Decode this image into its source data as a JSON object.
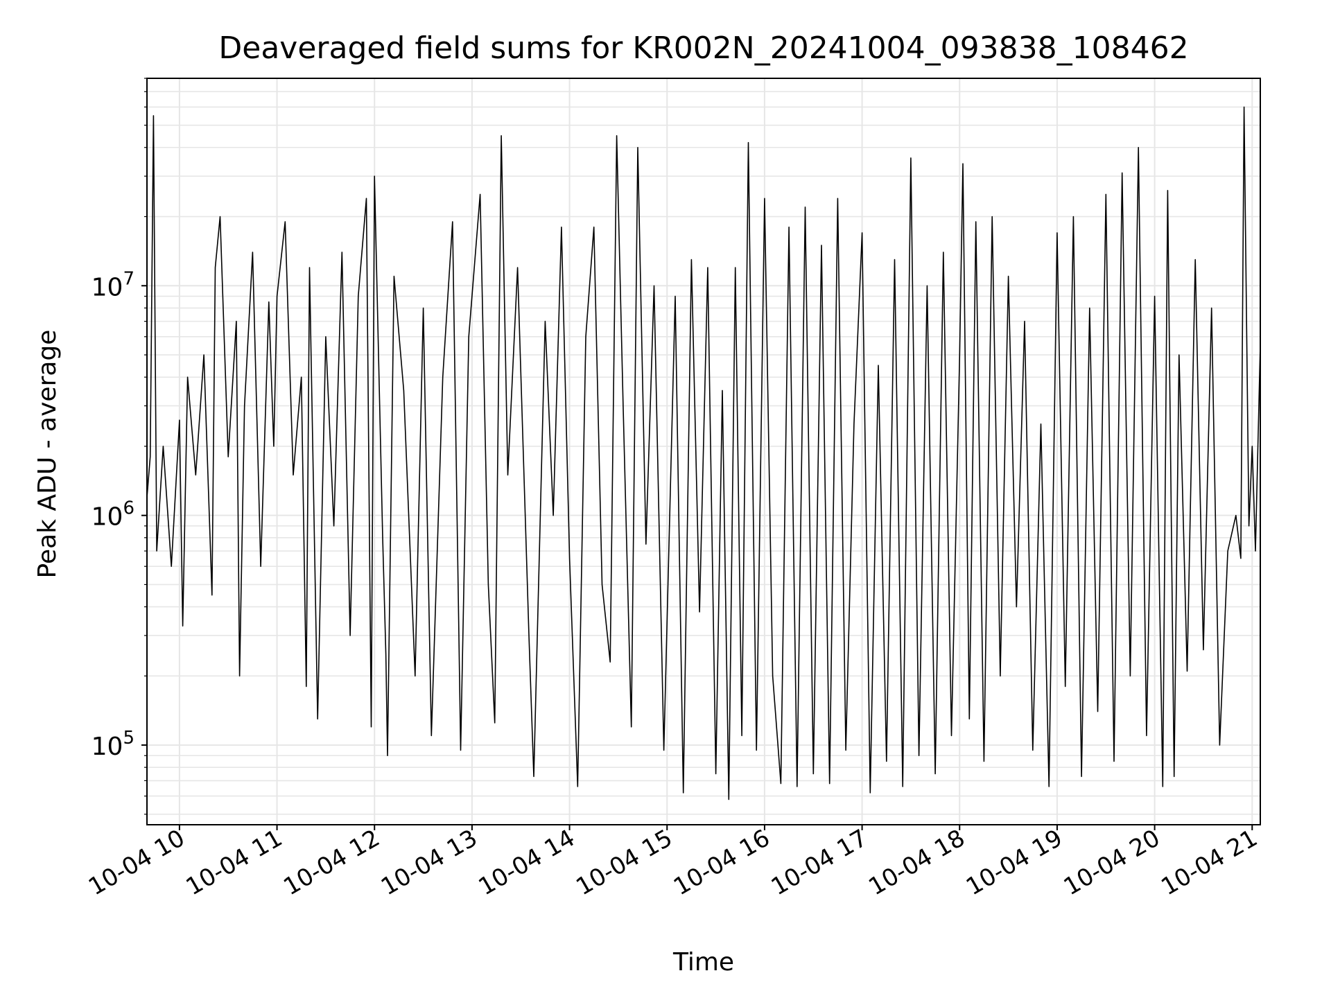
{
  "chart_data": {
    "type": "line",
    "title": "Deaveraged field sums for KR002N_20241004_093838_108462",
    "xlabel": "Time",
    "ylabel": "Peak ADU - average",
    "x_scale": "time",
    "y_scale": "log",
    "xlim": [
      "2024-10-04 09:40",
      "2024-10-04 21:05"
    ],
    "ylim": [
      45000,
      80000000
    ],
    "grid": true,
    "legend": "none",
    "x_tick_labels": [
      "10-04 10",
      "10-04 11",
      "10-04 12",
      "10-04 13",
      "10-04 14",
      "10-04 15",
      "10-04 16",
      "10-04 17",
      "10-04 18",
      "10-04 19",
      "10-04 20",
      "10-04 21"
    ],
    "y_tick_labels": [
      {
        "base": "10",
        "exp": "5",
        "value": 100000
      },
      {
        "base": "10",
        "exp": "6",
        "value": 1000000
      },
      {
        "base": "10",
        "exp": "7",
        "value": 10000000
      }
    ],
    "series": [
      {
        "color": "#000000",
        "points": [
          [
            "2024-10-04 09:40",
            1200000
          ],
          [
            "2024-10-04 09:42",
            1800000
          ],
          [
            "2024-10-04 09:44",
            55000000
          ],
          [
            "2024-10-04 09:46",
            700000
          ],
          [
            "2024-10-04 09:50",
            2000000
          ],
          [
            "2024-10-04 09:55",
            600000
          ],
          [
            "2024-10-04 10:00",
            2600000
          ],
          [
            "2024-10-04 10:02",
            330000
          ],
          [
            "2024-10-04 10:05",
            4000000
          ],
          [
            "2024-10-04 10:10",
            1500000
          ],
          [
            "2024-10-04 10:15",
            5000000
          ],
          [
            "2024-10-04 10:20",
            450000
          ],
          [
            "2024-10-04 10:22",
            12000000
          ],
          [
            "2024-10-04 10:25",
            20000000
          ],
          [
            "2024-10-04 10:30",
            1800000
          ],
          [
            "2024-10-04 10:35",
            7000000
          ],
          [
            "2024-10-04 10:37",
            200000
          ],
          [
            "2024-10-04 10:40",
            3000000
          ],
          [
            "2024-10-04 10:45",
            14000000
          ],
          [
            "2024-10-04 10:50",
            600000
          ],
          [
            "2024-10-04 10:55",
            8500000
          ],
          [
            "2024-10-04 10:58",
            2000000
          ],
          [
            "2024-10-04 11:00",
            9000000
          ],
          [
            "2024-10-04 11:05",
            19000000
          ],
          [
            "2024-10-04 11:10",
            1500000
          ],
          [
            "2024-10-04 11:15",
            4000000
          ],
          [
            "2024-10-04 11:18",
            180000
          ],
          [
            "2024-10-04 11:20",
            12000000
          ],
          [
            "2024-10-04 11:25",
            130000
          ],
          [
            "2024-10-04 11:30",
            6000000
          ],
          [
            "2024-10-04 11:35",
            900000
          ],
          [
            "2024-10-04 11:40",
            14000000
          ],
          [
            "2024-10-04 11:45",
            300000
          ],
          [
            "2024-10-04 11:50",
            9000000
          ],
          [
            "2024-10-04 11:55",
            24000000
          ],
          [
            "2024-10-04 11:58",
            120000
          ],
          [
            "2024-10-04 12:00",
            30000000
          ],
          [
            "2024-10-04 12:05",
            800000
          ],
          [
            "2024-10-04 12:07",
            250000
          ],
          [
            "2024-10-04 12:08",
            90000
          ],
          [
            "2024-10-04 12:12",
            11000000
          ],
          [
            "2024-10-04 12:18",
            3500000
          ],
          [
            "2024-10-04 12:25",
            200000
          ],
          [
            "2024-10-04 12:30",
            8000000
          ],
          [
            "2024-10-04 12:35",
            110000
          ],
          [
            "2024-10-04 12:42",
            4000000
          ],
          [
            "2024-10-04 12:48",
            19000000
          ],
          [
            "2024-10-04 12:53",
            95000
          ],
          [
            "2024-10-04 12:58",
            6000000
          ],
          [
            "2024-10-04 13:05",
            25000000
          ],
          [
            "2024-10-04 13:10",
            500000
          ],
          [
            "2024-10-04 13:14",
            125000
          ],
          [
            "2024-10-04 13:18",
            45000000
          ],
          [
            "2024-10-04 13:22",
            1500000
          ],
          [
            "2024-10-04 13:28",
            12000000
          ],
          [
            "2024-10-04 13:35",
            300000
          ],
          [
            "2024-10-04 13:38",
            73000
          ],
          [
            "2024-10-04 13:45",
            7000000
          ],
          [
            "2024-10-04 13:50",
            1000000
          ],
          [
            "2024-10-04 13:55",
            18000000
          ],
          [
            "2024-10-04 14:00",
            650000
          ],
          [
            "2024-10-04 14:05",
            66000
          ],
          [
            "2024-10-04 14:10",
            6000000
          ],
          [
            "2024-10-04 14:15",
            18000000
          ],
          [
            "2024-10-04 14:20",
            500000
          ],
          [
            "2024-10-04 14:25",
            230000
          ],
          [
            "2024-10-04 14:29",
            45000000
          ],
          [
            "2024-10-04 14:33",
            3000000
          ],
          [
            "2024-10-04 14:38",
            120000
          ],
          [
            "2024-10-04 14:42",
            40000000
          ],
          [
            "2024-10-04 14:47",
            750000
          ],
          [
            "2024-10-04 14:52",
            10000000
          ],
          [
            "2024-10-04 14:58",
            95000
          ],
          [
            "2024-10-04 15:05",
            9000000
          ],
          [
            "2024-10-04 15:10",
            62000
          ],
          [
            "2024-10-04 15:15",
            13000000
          ],
          [
            "2024-10-04 15:20",
            380000
          ],
          [
            "2024-10-04 15:25",
            12000000
          ],
          [
            "2024-10-04 15:30",
            75000
          ],
          [
            "2024-10-04 15:34",
            3500000
          ],
          [
            "2024-10-04 15:38",
            58000
          ],
          [
            "2024-10-04 15:42",
            12000000
          ],
          [
            "2024-10-04 15:46",
            110000
          ],
          [
            "2024-10-04 15:50",
            42000000
          ],
          [
            "2024-10-04 15:55",
            95000
          ],
          [
            "2024-10-04 16:00",
            24000000
          ],
          [
            "2024-10-04 16:05",
            200000
          ],
          [
            "2024-10-04 16:10",
            68000
          ],
          [
            "2024-10-04 16:15",
            18000000
          ],
          [
            "2024-10-04 16:20",
            66000
          ],
          [
            "2024-10-04 16:25",
            22000000
          ],
          [
            "2024-10-04 16:30",
            75000
          ],
          [
            "2024-10-04 16:35",
            15000000
          ],
          [
            "2024-10-04 16:40",
            68000
          ],
          [
            "2024-10-04 16:45",
            24000000
          ],
          [
            "2024-10-04 16:50",
            95000
          ],
          [
            "2024-10-04 16:55",
            2500000
          ],
          [
            "2024-10-04 17:00",
            17000000
          ],
          [
            "2024-10-04 17:05",
            62000
          ],
          [
            "2024-10-04 17:10",
            4500000
          ],
          [
            "2024-10-04 17:15",
            85000
          ],
          [
            "2024-10-04 17:20",
            13000000
          ],
          [
            "2024-10-04 17:25",
            66000
          ],
          [
            "2024-10-04 17:30",
            36000000
          ],
          [
            "2024-10-04 17:35",
            90000
          ],
          [
            "2024-10-04 17:40",
            10000000
          ],
          [
            "2024-10-04 17:45",
            75000
          ],
          [
            "2024-10-04 17:50",
            14000000
          ],
          [
            "2024-10-04 17:55",
            110000
          ],
          [
            "2024-10-04 18:00",
            5000000
          ],
          [
            "2024-10-04 18:02",
            34000000
          ],
          [
            "2024-10-04 18:06",
            130000
          ],
          [
            "2024-10-04 18:10",
            19000000
          ],
          [
            "2024-10-04 18:15",
            85000
          ],
          [
            "2024-10-04 18:20",
            20000000
          ],
          [
            "2024-10-04 18:25",
            200000
          ],
          [
            "2024-10-04 18:30",
            11000000
          ],
          [
            "2024-10-04 18:35",
            400000
          ],
          [
            "2024-10-04 18:40",
            7000000
          ],
          [
            "2024-10-04 18:45",
            95000
          ],
          [
            "2024-10-04 18:50",
            2500000
          ],
          [
            "2024-10-04 18:55",
            66000
          ],
          [
            "2024-10-04 19:00",
            17000000
          ],
          [
            "2024-10-04 19:05",
            180000
          ],
          [
            "2024-10-04 19:10",
            20000000
          ],
          [
            "2024-10-04 19:15",
            73000
          ],
          [
            "2024-10-04 19:20",
            8000000
          ],
          [
            "2024-10-04 19:25",
            140000
          ],
          [
            "2024-10-04 19:30",
            25000000
          ],
          [
            "2024-10-04 19:35",
            85000
          ],
          [
            "2024-10-04 19:40",
            31000000
          ],
          [
            "2024-10-04 19:45",
            200000
          ],
          [
            "2024-10-04 19:50",
            40000000
          ],
          [
            "2024-10-04 19:55",
            110000
          ],
          [
            "2024-10-04 20:00",
            9000000
          ],
          [
            "2024-10-04 20:05",
            66000
          ],
          [
            "2024-10-04 20:08",
            26000000
          ],
          [
            "2024-10-04 20:12",
            73000
          ],
          [
            "2024-10-04 20:15",
            5000000
          ],
          [
            "2024-10-04 20:20",
            210000
          ],
          [
            "2024-10-04 20:25",
            13000000
          ],
          [
            "2024-10-04 20:30",
            260000
          ],
          [
            "2024-10-04 20:35",
            8000000
          ],
          [
            "2024-10-04 20:40",
            100000
          ],
          [
            "2024-10-04 20:45",
            700000
          ],
          [
            "2024-10-04 20:50",
            1000000
          ],
          [
            "2024-10-04 20:53",
            650000
          ],
          [
            "2024-10-04 20:55",
            60000000
          ],
          [
            "2024-10-04 20:58",
            900000
          ],
          [
            "2024-10-04 21:00",
            2000000
          ],
          [
            "2024-10-04 21:02",
            700000
          ],
          [
            "2024-10-04 21:05",
            5500000
          ]
        ]
      }
    ]
  }
}
